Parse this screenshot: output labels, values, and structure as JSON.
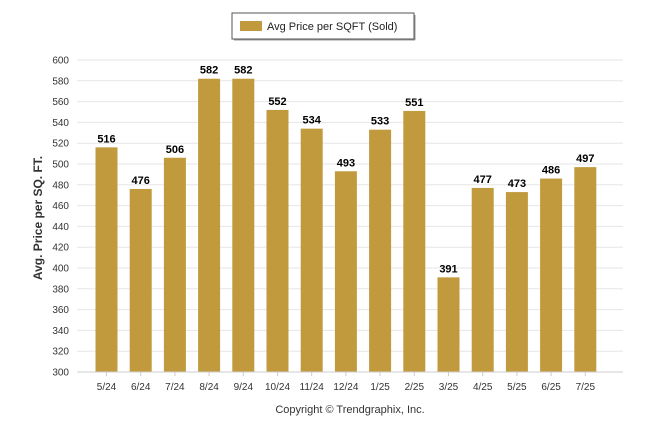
{
  "chart_data": {
    "type": "bar",
    "categories": [
      "5/24",
      "6/24",
      "7/24",
      "8/24",
      "9/24",
      "10/24",
      "11/24",
      "12/24",
      "1/25",
      "2/25",
      "3/25",
      "4/25",
      "5/25",
      "6/25",
      "7/25"
    ],
    "series": [
      {
        "name": "Avg Price per SQFT (Sold)",
        "values": [
          516,
          476,
          506,
          582,
          582,
          552,
          534,
          493,
          533,
          551,
          391,
          477,
          473,
          486,
          497
        ],
        "color": "#c29a3e"
      }
    ],
    "ylabel": "Avg. Price per SQ. FT.",
    "xlabel": "",
    "ylim": [
      300,
      600
    ],
    "yticks": [
      300,
      320,
      340,
      360,
      380,
      400,
      420,
      440,
      460,
      480,
      500,
      520,
      540,
      560,
      580,
      600
    ],
    "grid": true,
    "legend_position": "top-center",
    "data_labels": true
  },
  "footer": {
    "copyright": "Copyright © Trendgraphix, Inc."
  }
}
